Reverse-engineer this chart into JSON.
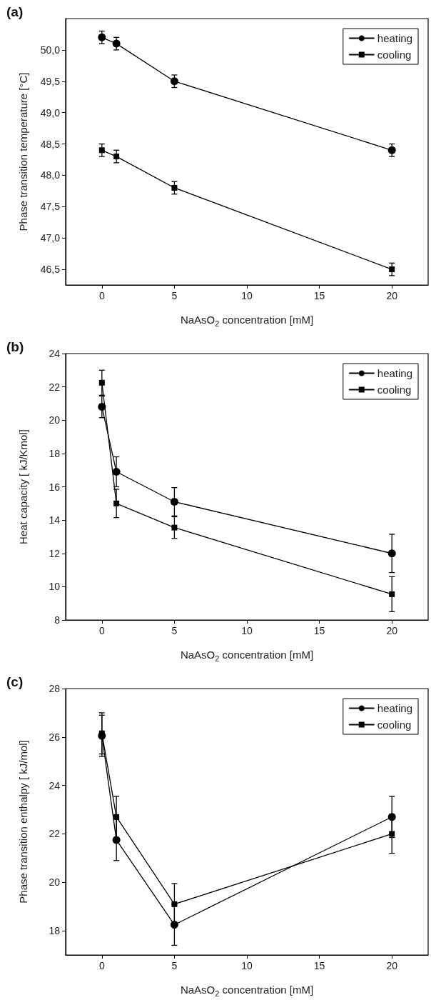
{
  "chart_data": [
    {
      "type": "line",
      "title": "(a)",
      "xlabel": "NaAsO$_{2}$ concentration [mM]",
      "ylabel": "Phase transition temperature [°C]",
      "x": [
        0,
        1,
        5,
        20
      ],
      "xlim": [
        -2.5,
        22.5
      ],
      "xticks": [
        0,
        5,
        10,
        15,
        20
      ],
      "ylim": [
        46.25,
        50.5
      ],
      "yticks": [
        {
          "value": 46.5,
          "label": "46,5"
        },
        {
          "value": 47.0,
          "label": "47,0"
        },
        {
          "value": 47.5,
          "label": "47,5"
        },
        {
          "value": 48.0,
          "label": "48,0"
        },
        {
          "value": 48.5,
          "label": "48,5"
        },
        {
          "value": 49.0,
          "label": "49,0"
        },
        {
          "value": 49.5,
          "label": "49,5"
        },
        {
          "value": 50.0,
          "label": "50,0"
        }
      ],
      "grid": false,
      "legend": "top right",
      "line_style": "solid",
      "series": [
        {
          "name": "heating",
          "color": "#000000",
          "marker": "circle",
          "values": [
            50.2,
            50.1,
            49.5,
            48.4
          ],
          "errors": [
            0.1,
            0.1,
            0.1,
            0.1
          ]
        },
        {
          "name": "cooling",
          "color": "#000000",
          "marker": "square",
          "values": [
            48.4,
            48.3,
            47.8,
            46.5
          ],
          "errors": [
            0.1,
            0.1,
            0.1,
            0.1
          ]
        }
      ]
    },
    {
      "type": "line",
      "title": "(b)",
      "xlabel": "NaAsO$_{2}$ concentration [mM]",
      "ylabel": "Heat capacity [ kJ/Kmol]",
      "x": [
        0,
        1,
        5,
        20
      ],
      "xlim": [
        -2.5,
        22.5
      ],
      "xticks": [
        0,
        5,
        10,
        15,
        20
      ],
      "ylim": [
        8,
        24
      ],
      "yticks": [
        8,
        10,
        12,
        14,
        16,
        18,
        20,
        22,
        24
      ],
      "grid": false,
      "legend": "top right",
      "line_style": "solid",
      "series": [
        {
          "name": "heating",
          "color": "#000000",
          "marker": "circle",
          "values": [
            20.8,
            16.9,
            15.1,
            12.0
          ],
          "errors": [
            0.65,
            0.9,
            0.85,
            1.15
          ]
        },
        {
          "name": "cooling",
          "color": "#000000",
          "marker": "square",
          "values": [
            22.25,
            15.0,
            13.55,
            9.55
          ],
          "errors": [
            0.75,
            0.85,
            0.65,
            1.05
          ]
        }
      ]
    },
    {
      "type": "line",
      "title": "(c)",
      "xlabel": "NaAsO$_{2}$ concentration [mM]",
      "ylabel": "Phase transition enthalpy [ kJ/mol]",
      "x": [
        0,
        1,
        5,
        20
      ],
      "xlim": [
        -2.5,
        22.5
      ],
      "xticks": [
        0,
        5,
        10,
        15,
        20
      ],
      "ylim": [
        17,
        28
      ],
      "yticks": [
        18,
        20,
        22,
        24,
        26,
        28
      ],
      "grid": false,
      "legend": "top right",
      "line_style": "solid",
      "series": [
        {
          "name": "heating",
          "color": "#000000",
          "marker": "circle",
          "values": [
            26.05,
            21.75,
            18.25,
            22.7
          ],
          "errors": [
            0.85,
            0.85,
            0.85,
            0.85
          ]
        },
        {
          "name": "cooling",
          "color": "#000000",
          "marker": "square",
          "values": [
            26.15,
            22.7,
            19.1,
            22.0
          ],
          "errors": [
            0.85,
            0.85,
            0.85,
            0.8
          ]
        }
      ]
    }
  ]
}
